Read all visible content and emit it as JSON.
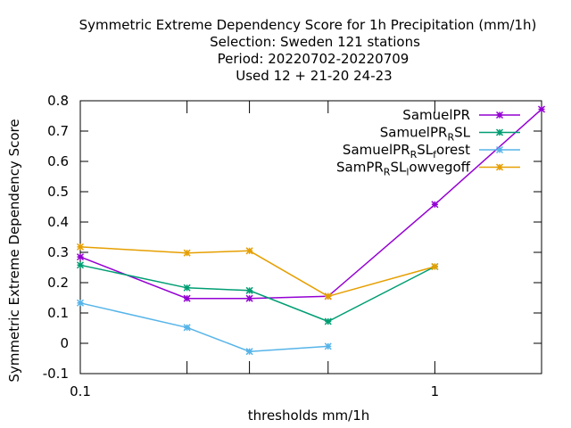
{
  "chart_data": {
    "type": "line",
    "title_lines": [
      "Symmetric Extreme Dependency Score  for 1h Precipitation (mm/1h)",
      "Selection: Sweden    121 stations",
      "Period: 20220702-20220709",
      "Used  12 + 21-20 24-23"
    ],
    "xlabel": "thresholds mm/1h",
    "ylabel": "Symmetric Extreme Dependency Score",
    "x_scale": "log",
    "xlim": [
      0.1,
      2
    ],
    "ylim": [
      -0.1,
      0.8
    ],
    "x_ticks": [
      {
        "value": 0.1,
        "label": "0.1"
      },
      {
        "value": 0.2,
        "label": ""
      },
      {
        "value": 0.3,
        "label": ""
      },
      {
        "value": 0.5,
        "label": ""
      },
      {
        "value": 1,
        "label": "1"
      },
      {
        "value": 2,
        "label": ""
      }
    ],
    "y_ticks": [
      {
        "value": -0.1,
        "label": "-0.1"
      },
      {
        "value": 0,
        "label": "0"
      },
      {
        "value": 0.1,
        "label": "0.1"
      },
      {
        "value": 0.2,
        "label": "0.2"
      },
      {
        "value": 0.3,
        "label": "0.3"
      },
      {
        "value": 0.4,
        "label": "0.4"
      },
      {
        "value": 0.5,
        "label": "0.5"
      },
      {
        "value": 0.6,
        "label": "0.6"
      },
      {
        "value": 0.7,
        "label": "0.7"
      },
      {
        "value": 0.8,
        "label": "0.8"
      }
    ],
    "grid": false,
    "legend_position": "top-right",
    "series": [
      {
        "id": "samuelpr",
        "name_parts": [
          {
            "t": "SamuelPR",
            "sub": false
          }
        ],
        "color": "#9400d3",
        "x": [
          0.1,
          0.2,
          0.3,
          0.5,
          1,
          2
        ],
        "y": [
          0.285,
          0.148,
          0.148,
          0.155,
          0.458,
          0.772
        ]
      },
      {
        "id": "samuelpr-rsl",
        "name_parts": [
          {
            "t": "SamuelPR",
            "sub": false
          },
          {
            "t": "R",
            "sub": true
          },
          {
            "t": "SL",
            "sub": false
          }
        ],
        "color": "#009e73",
        "x": [
          0.1,
          0.2,
          0.3,
          0.5,
          1
        ],
        "y": [
          0.258,
          0.183,
          0.174,
          0.072,
          0.253
        ]
      },
      {
        "id": "samuelpr-rsl-forest",
        "name_parts": [
          {
            "t": "SamuelPR",
            "sub": false
          },
          {
            "t": "R",
            "sub": true
          },
          {
            "t": "SL",
            "sub": false
          },
          {
            "t": "f",
            "sub": true
          },
          {
            "t": "orest",
            "sub": false
          }
        ],
        "color": "#56b4e9",
        "x": [
          0.1,
          0.2,
          0.3,
          0.5
        ],
        "y": [
          0.133,
          0.052,
          -0.027,
          -0.01
        ]
      },
      {
        "id": "sampr-rsl-lowvegoff",
        "name_parts": [
          {
            "t": "SamPR",
            "sub": false
          },
          {
            "t": "R",
            "sub": true
          },
          {
            "t": "SL",
            "sub": false
          },
          {
            "t": "l",
            "sub": true
          },
          {
            "t": "owvegoff",
            "sub": false
          }
        ],
        "color": "#e69f00",
        "x": [
          0.1,
          0.2,
          0.3,
          0.5,
          1
        ],
        "y": [
          0.318,
          0.298,
          0.305,
          0.155,
          0.253
        ]
      }
    ]
  }
}
